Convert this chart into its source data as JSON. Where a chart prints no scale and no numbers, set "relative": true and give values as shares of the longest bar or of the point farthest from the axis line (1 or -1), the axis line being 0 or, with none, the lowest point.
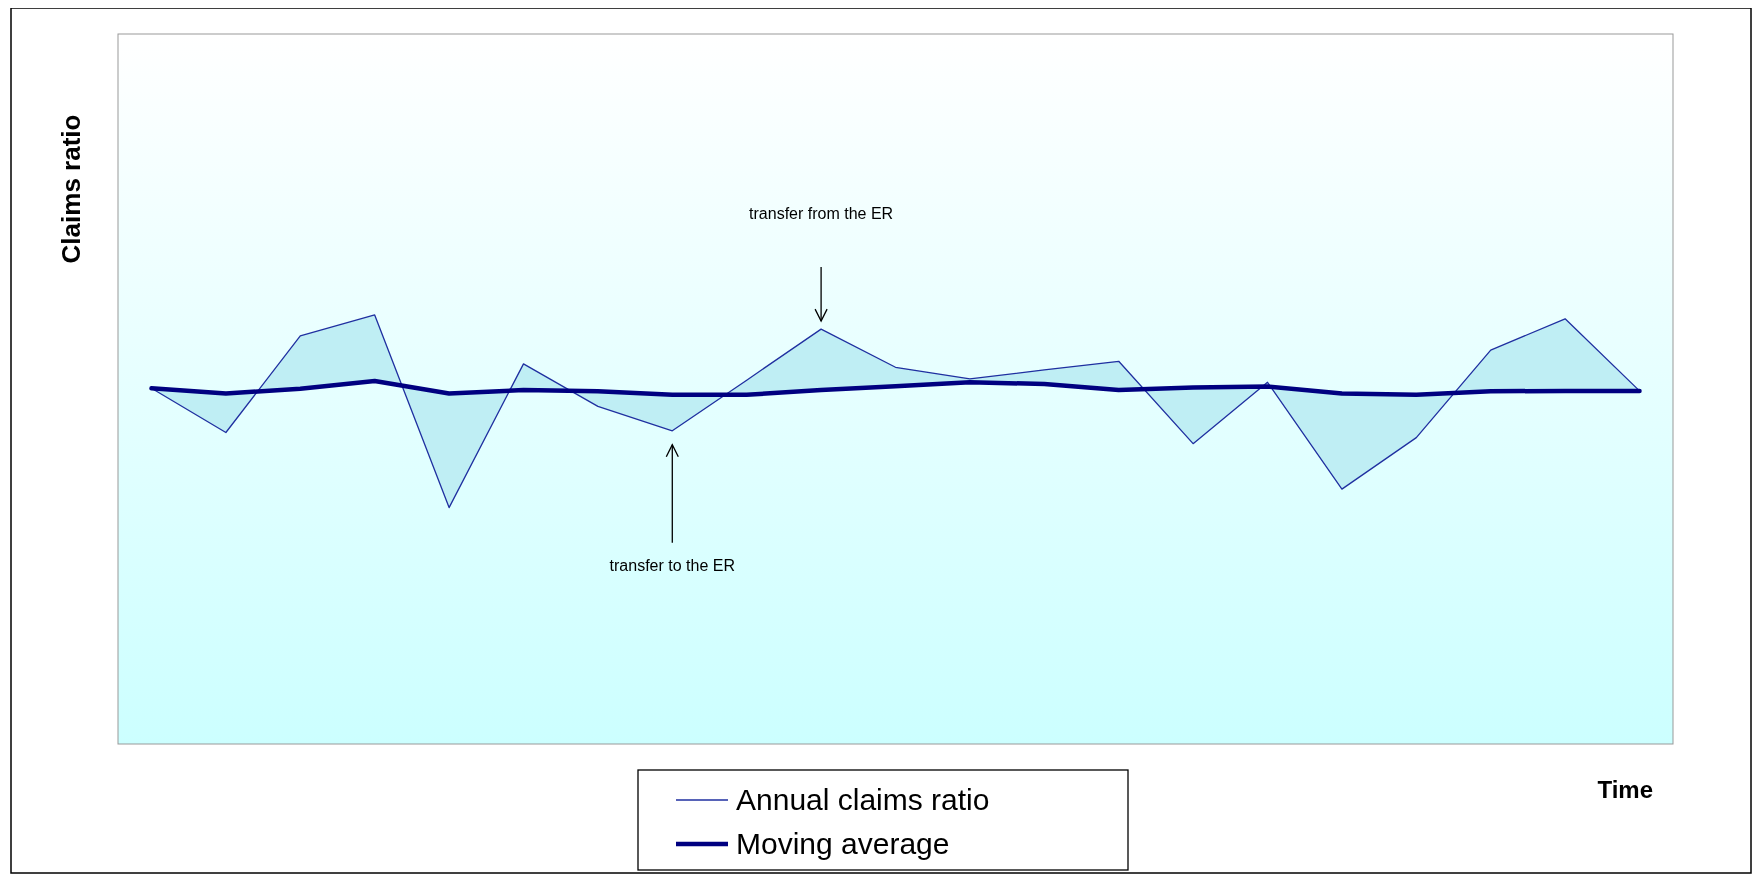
{
  "chart_data": {
    "type": "line",
    "relative": true,
    "ylabel": "Claims ratio",
    "xlabel": "Time",
    "legend": "bottom",
    "grid": false,
    "marker": "none",
    "categories": [
      null,
      null,
      null,
      null,
      null,
      null,
      null,
      null,
      null,
      null,
      null,
      null,
      null,
      null,
      null,
      null,
      null,
      null,
      null,
      null,
      null
    ],
    "series": [
      {
        "name": "Annual claims ratio",
        "color": "#1f2fa0",
        "values": [
          0.829,
          0.726,
          0.951,
          1,
          0.551,
          0.886,
          0.787,
          0.73,
          0.848,
          0.967,
          0.878,
          0.851,
          0.872,
          0.892,
          0.7,
          0.843,
          0.594,
          0.714,
          0.918,
          0.991,
          0.823
        ]
      },
      {
        "name": "Moving average",
        "color": "#000080",
        "values": [
          0.829,
          0.817,
          0.828,
          0.846,
          0.817,
          0.825,
          0.822,
          0.814,
          0.814,
          0.825,
          0.834,
          0.843,
          0.839,
          0.825,
          0.831,
          0.833,
          0.817,
          0.814,
          0.822,
          0.823,
          0.823
        ]
      }
    ],
    "annotations": [
      "transfer from the ER",
      "transfer to the ER"
    ]
  }
}
